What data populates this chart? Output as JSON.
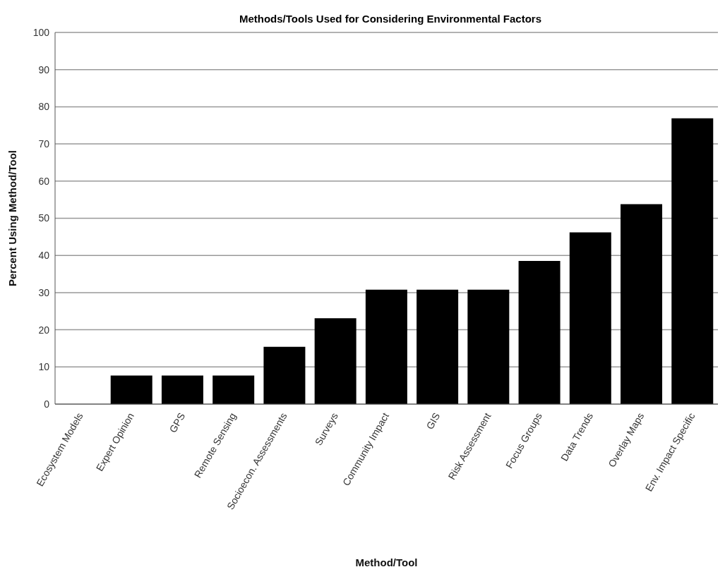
{
  "chart_data": {
    "type": "bar",
    "title": "Methods/Tools Used for Considering Environmental Factors",
    "xlabel": "Method/Tool",
    "ylabel": "Percent Using Method/Tool",
    "categories": [
      "Ecosystem Models",
      "Expert Opinion",
      "GPS",
      "Remote Sensing",
      "Socioecon. Assessments",
      "Surveys",
      "Community Impact",
      "GIS",
      "Risk Assessment",
      "Focus Groups",
      "Data Trends",
      "Overlay Maps",
      "Env. Impact Specific"
    ],
    "values": [
      0,
      7.7,
      7.7,
      7.7,
      15.4,
      23.1,
      30.8,
      30.8,
      30.8,
      38.5,
      46.2,
      53.8,
      76.9
    ],
    "color": "#000000",
    "ylim": [
      0,
      100
    ],
    "yticks": [
      0,
      10,
      20,
      30,
      40,
      50,
      60,
      70,
      80,
      90,
      100
    ],
    "grid": "y"
  }
}
